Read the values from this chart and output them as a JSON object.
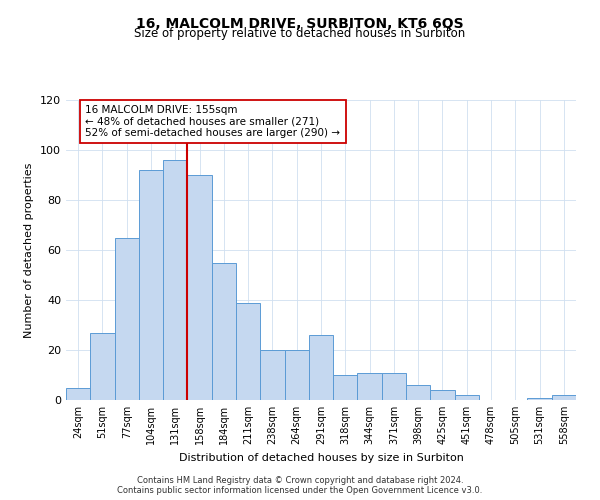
{
  "title": "16, MALCOLM DRIVE, SURBITON, KT6 6QS",
  "subtitle": "Size of property relative to detached houses in Surbiton",
  "xlabel": "Distribution of detached houses by size in Surbiton",
  "ylabel": "Number of detached properties",
  "categories": [
    "24sqm",
    "51sqm",
    "77sqm",
    "104sqm",
    "131sqm",
    "158sqm",
    "184sqm",
    "211sqm",
    "238sqm",
    "264sqm",
    "291sqm",
    "318sqm",
    "344sqm",
    "371sqm",
    "398sqm",
    "425sqm",
    "451sqm",
    "478sqm",
    "505sqm",
    "531sqm",
    "558sqm"
  ],
  "values": [
    5,
    27,
    65,
    92,
    96,
    90,
    55,
    39,
    20,
    20,
    26,
    10,
    11,
    11,
    6,
    4,
    2,
    0,
    0,
    1,
    2
  ],
  "bar_color": "#c5d8f0",
  "bar_edge_color": "#5b9bd5",
  "vline_x_index": 4.5,
  "vline_color": "#cc0000",
  "annotation_line1": "16 MALCOLM DRIVE: 155sqm",
  "annotation_line2": "← 48% of detached houses are smaller (271)",
  "annotation_line3": "52% of semi-detached houses are larger (290) →",
  "annotation_box_color": "#ffffff",
  "annotation_box_edge": "#cc0000",
  "ylim": [
    0,
    120
  ],
  "yticks": [
    0,
    20,
    40,
    60,
    80,
    100,
    120
  ],
  "footer_line1": "Contains HM Land Registry data © Crown copyright and database right 2024.",
  "footer_line2": "Contains public sector information licensed under the Open Government Licence v3.0.",
  "background_color": "#ffffff",
  "grid_color": "#d0dff0"
}
